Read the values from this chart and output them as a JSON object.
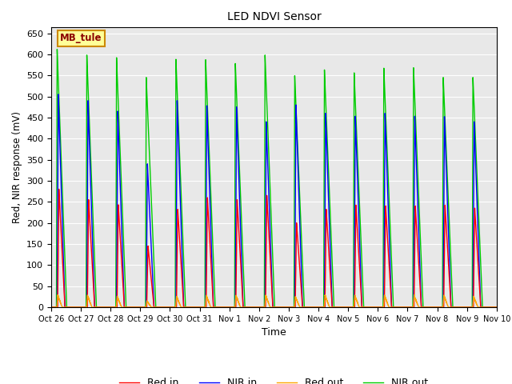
{
  "title": "LED NDVI Sensor",
  "xlabel": "Time",
  "ylabel": "Red, NIR response (mV)",
  "ylim": [
    0,
    665
  ],
  "yticks": [
    0,
    50,
    100,
    150,
    200,
    250,
    300,
    350,
    400,
    450,
    500,
    550,
    600,
    650
  ],
  "legend_labels": [
    "Red in",
    "NIR in",
    "Red out",
    "NIR out"
  ],
  "legend_colors": [
    "#ff0000",
    "#0000ff",
    "#ffa500",
    "#00cc00"
  ],
  "annotation_text": "MB_tule",
  "annotation_bg": "#ffff99",
  "annotation_border": "#cc8800",
  "bg_color": "#e8e8e8",
  "num_cycles": 15,
  "x_tick_labels": [
    "Oct 26",
    "Oct 27",
    "Oct 28",
    "Oct 29",
    "Oct 30",
    "Oct 31",
    "Nov 1",
    "Nov 2",
    "Nov 3",
    "Nov 4",
    "Nov 5",
    "Nov 6",
    "Nov 7",
    "Nov 8",
    "Nov 9",
    "Nov 10"
  ],
  "red_in_peaks": [
    280,
    255,
    243,
    145,
    232,
    260,
    255,
    265,
    200,
    232,
    242,
    240,
    240,
    242,
    235
  ],
  "nir_in_peaks": [
    505,
    490,
    465,
    340,
    490,
    478,
    475,
    440,
    480,
    460,
    453,
    460,
    453,
    452,
    440
  ],
  "red_out_peaks": [
    28,
    28,
    25,
    15,
    25,
    28,
    28,
    28,
    25,
    28,
    28,
    28,
    28,
    28,
    25
  ],
  "nir_out_peaks": [
    612,
    598,
    592,
    545,
    588,
    587,
    578,
    598,
    549,
    563,
    556,
    567,
    568,
    545,
    545
  ]
}
